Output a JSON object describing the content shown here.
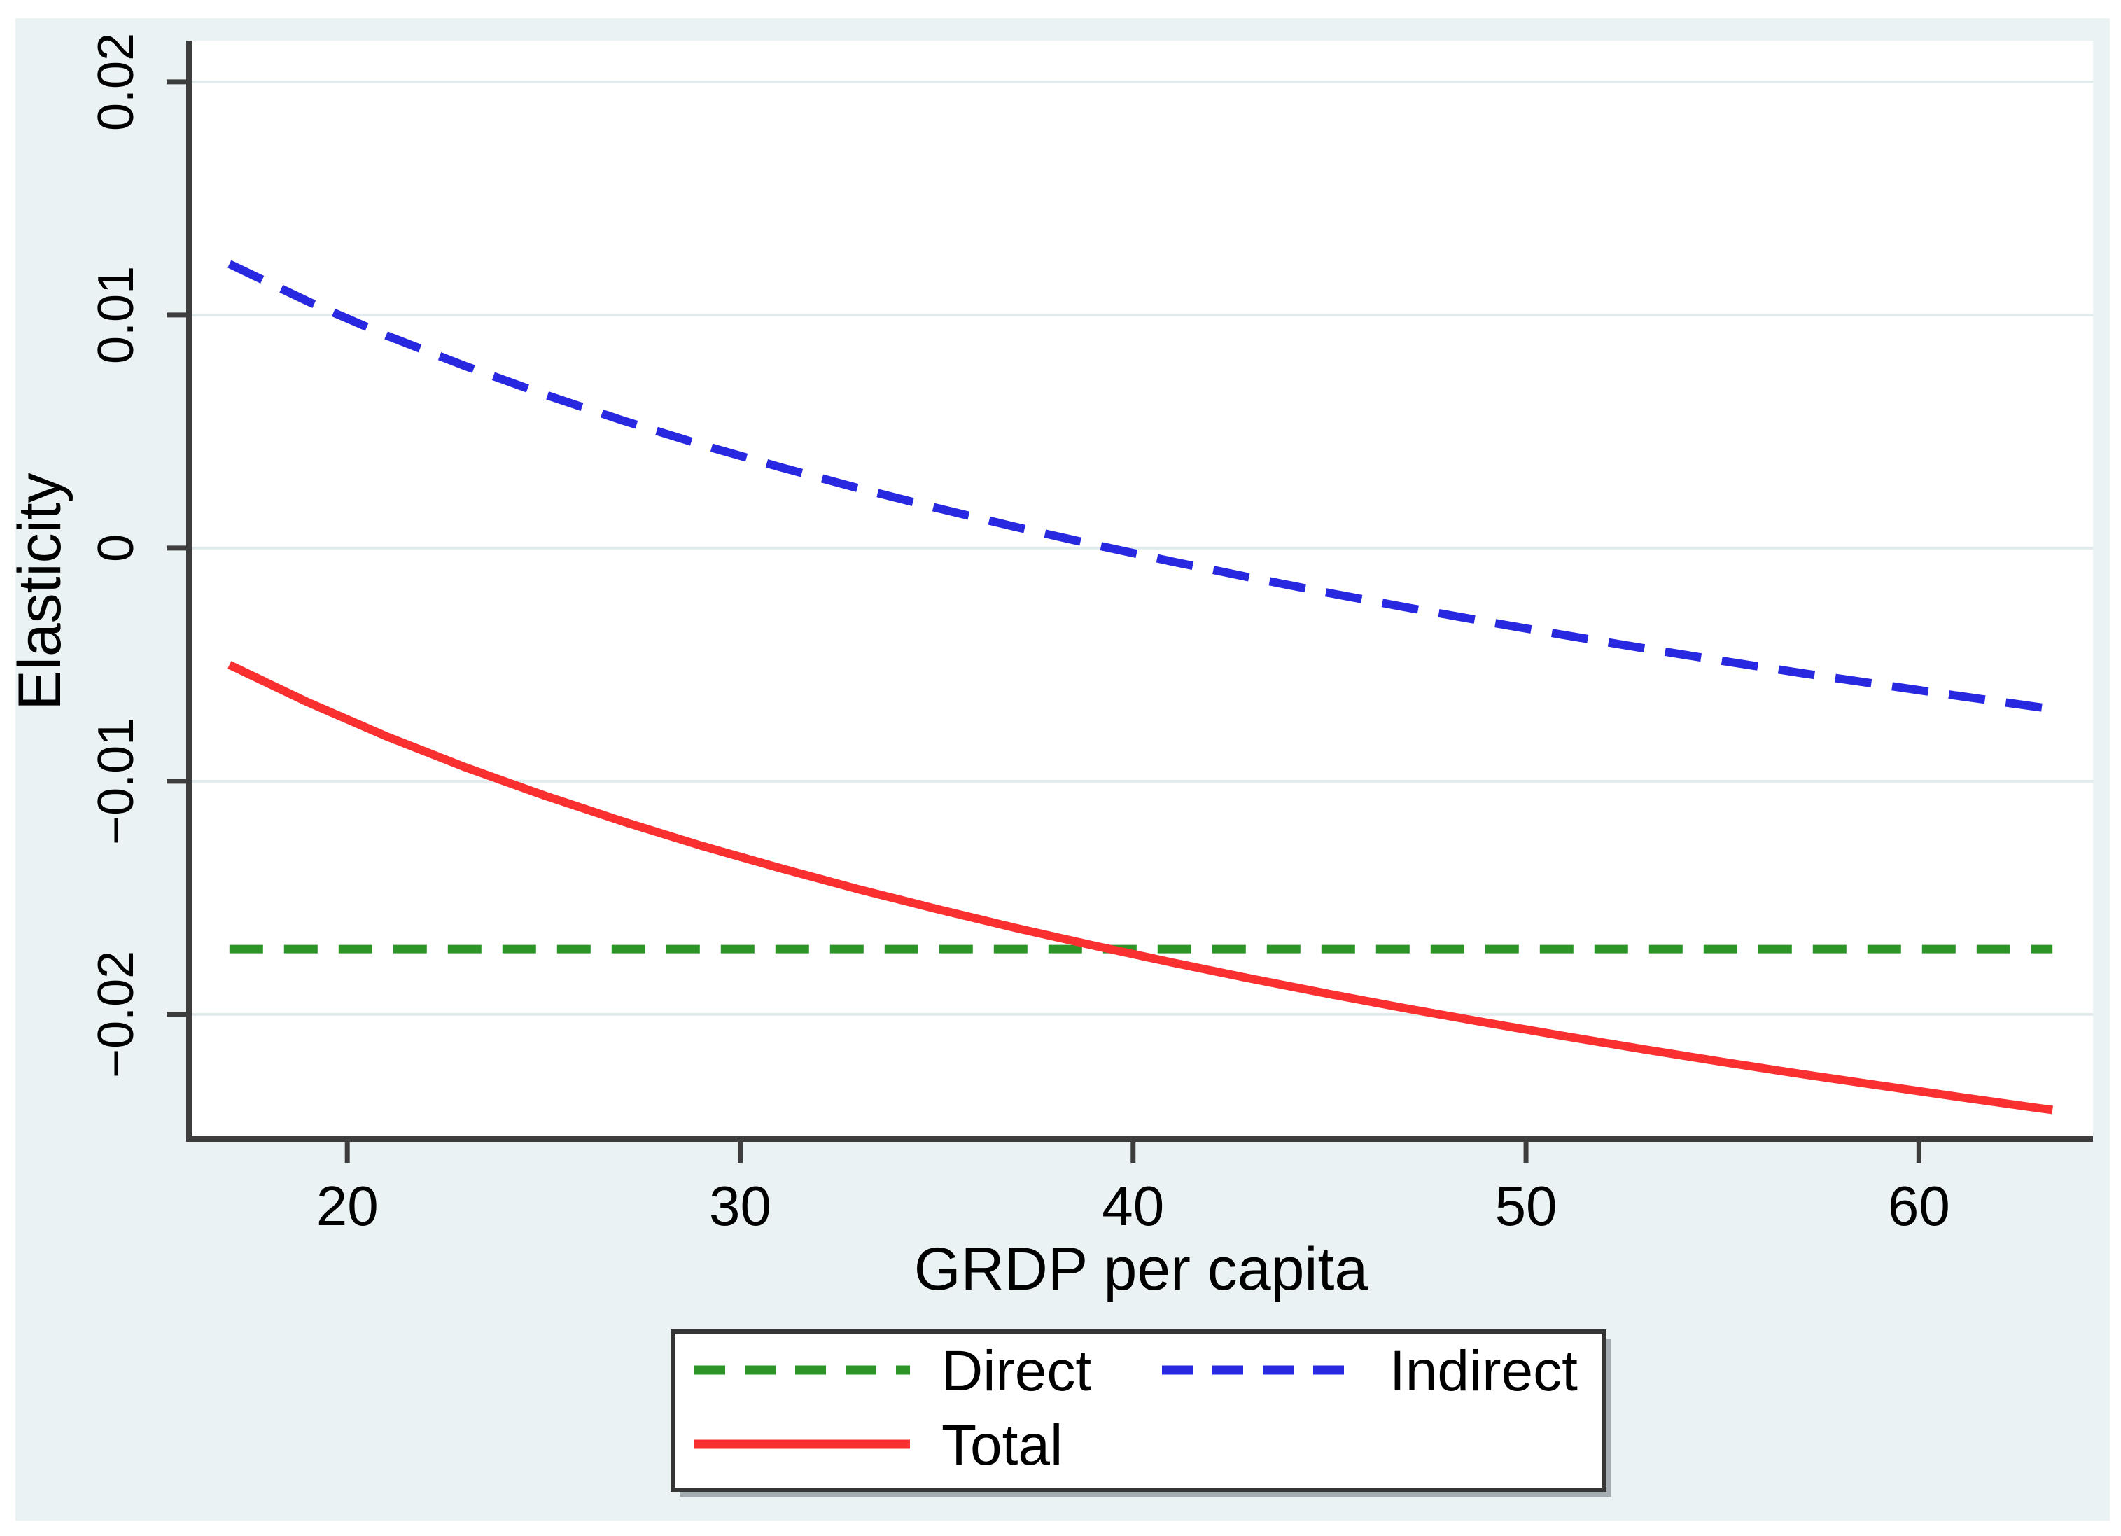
{
  "figure": {
    "title": "",
    "background_color": "#eaf2f3",
    "plot_background_color": "#ffffff",
    "axis_color": "#3d3d3d",
    "gridline_color": "#e1ebee",
    "text_color": "#000000",
    "legend_border_color": "#353535",
    "legend_shadow_color": "#97a1a4"
  },
  "chart_data": {
    "type": "line",
    "title": "",
    "xlabel": "GRDP per capita",
    "ylabel": "Elasticity",
    "xlim": [
      15.97,
      64.43
    ],
    "ylim": [
      -0.02535,
      0.02177
    ],
    "grid": "horizontal",
    "legend_position": "bottom",
    "x_ticks": [
      20,
      30,
      40,
      50,
      60
    ],
    "x_tick_labels": [
      "20",
      "30",
      "40",
      "50",
      "60"
    ],
    "y_ticks": [
      0.02,
      0.01,
      0,
      -0.01,
      -0.02
    ],
    "y_tick_labels": [
      "0.02",
      "0.01",
      "0",
      "−0.01",
      "−0.02"
    ],
    "x": [
      17,
      19,
      21,
      23,
      25,
      27,
      29,
      31,
      33,
      35,
      37,
      39,
      41,
      43,
      45,
      47,
      49,
      51,
      53,
      55,
      57,
      59,
      61,
      63,
      63.4
    ],
    "series": [
      {
        "name": "Direct",
        "style": "dashed",
        "color": "#2d9428",
        "dash": "48 30",
        "values": [
          -0.0172,
          -0.0172,
          -0.0172,
          -0.0172,
          -0.0172,
          -0.0172,
          -0.0172,
          -0.0172,
          -0.0172,
          -0.0172,
          -0.0172,
          -0.0172,
          -0.0172,
          -0.0172,
          -0.0172,
          -0.0172,
          -0.0172,
          -0.0172,
          -0.0172,
          -0.0172,
          -0.0172,
          -0.0172,
          -0.0172,
          -0.0172,
          -0.0172
        ]
      },
      {
        "name": "Indirect",
        "style": "dashed",
        "color": "#2828e1",
        "dash": "52 30",
        "values": [
          0.01219,
          0.01058,
          0.00912,
          0.00781,
          0.0066,
          0.00548,
          0.00444,
          0.00348,
          0.00257,
          0.00172,
          0.00091,
          0.00015,
          -0.00058,
          -0.00127,
          -0.00193,
          -0.00256,
          -0.00316,
          -0.00374,
          -0.0043,
          -0.00484,
          -0.00536,
          -0.00585,
          -0.00634,
          -0.00681,
          -0.0069
        ]
      },
      {
        "name": "Total",
        "style": "solid",
        "color": "#fa3030",
        "dash": "",
        "values": [
          -0.00501,
          -0.00662,
          -0.00808,
          -0.0094,
          -0.0106,
          -0.01172,
          -0.01276,
          -0.01372,
          -0.01463,
          -0.01548,
          -0.01629,
          -0.01705,
          -0.01778,
          -0.01847,
          -0.01913,
          -0.01976,
          -0.02036,
          -0.02094,
          -0.0215,
          -0.02204,
          -0.02256,
          -0.02305,
          -0.02354,
          -0.02401,
          -0.0241
        ]
      }
    ]
  },
  "legend": {
    "entries": [
      {
        "label": "Direct",
        "series_index": 0
      },
      {
        "label": "Indirect",
        "series_index": 1
      },
      {
        "label": "Total",
        "series_index": 2
      }
    ]
  }
}
